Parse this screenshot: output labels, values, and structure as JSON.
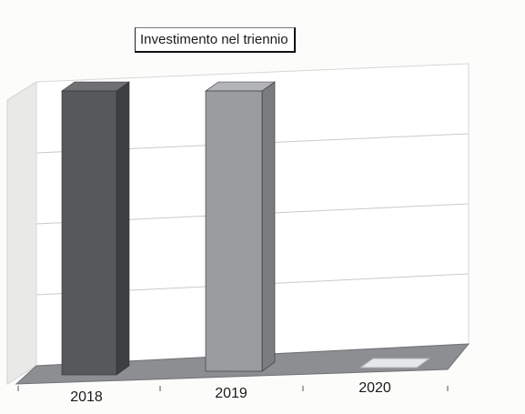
{
  "chart_data": {
    "type": "bar",
    "title": "Investimento nel triennio",
    "categories": [
      "2018",
      "2019",
      "2020"
    ],
    "values": [
      100,
      100,
      0
    ],
    "ylim": [
      0,
      100
    ],
    "xlabel": "",
    "ylabel": "",
    "grid": true,
    "legend": "none",
    "three_d": true,
    "colors": {
      "bar_2018_front": "#57585b",
      "bar_2018_side": "#3e3f42",
      "bar_2018_top": "#6f7074",
      "bar_2019_front": "#9a9ca0",
      "bar_2019_side": "#7a7c80",
      "bar_2019_top": "#b2b4b8",
      "bar_2020": "#e6e7e9",
      "floor": "#8c8e92",
      "back_wall": "#ffffff",
      "side_wall": "#e9eae8",
      "grid": "#c9cac8"
    }
  }
}
